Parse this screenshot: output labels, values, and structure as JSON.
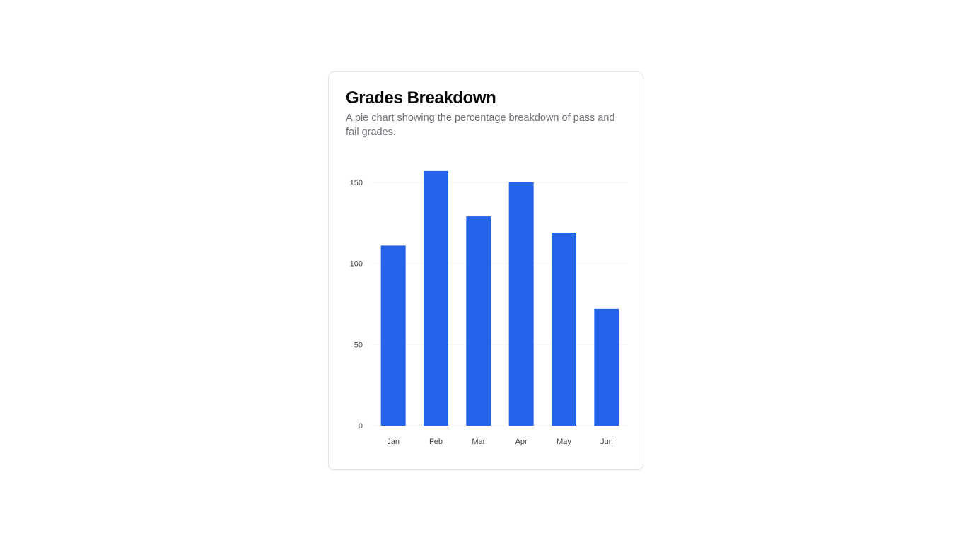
{
  "card": {
    "title": "Grades Breakdown",
    "description": "A pie chart showing the percentage breakdown of pass and fail grades."
  },
  "colors": {
    "bar": "#2563eb",
    "grid": "#f4f4f5",
    "tick_text": "#3f3f46"
  },
  "chart_data": {
    "type": "bar",
    "categories": [
      "Jan",
      "Feb",
      "Mar",
      "Apr",
      "May",
      "Jun"
    ],
    "values": [
      111,
      157,
      129,
      150,
      119,
      72
    ],
    "yticks": [
      0,
      50,
      100,
      150
    ],
    "ylim": [
      0,
      160
    ],
    "grid": true,
    "legend": "none"
  }
}
